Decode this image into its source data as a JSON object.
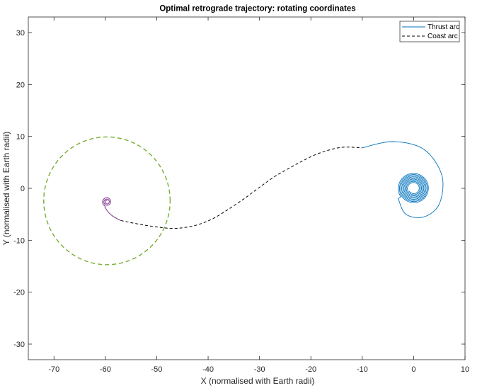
{
  "chart_data": {
    "type": "line",
    "title": "Optimal retrograde trajectory: rotating coordinates",
    "xlabel": "X (normalised with Earth radii)",
    "ylabel": "Y (normalised with Earth radii)",
    "xlim": [
      -75,
      10
    ],
    "ylim": [
      -33,
      33
    ],
    "xticks": [
      -70,
      -60,
      -50,
      -40,
      -30,
      -20,
      -10,
      0,
      10
    ],
    "yticks": [
      -30,
      -20,
      -10,
      0,
      10,
      20,
      30
    ],
    "grid": false,
    "legend_position": "top-right",
    "series": [
      {
        "name": "Thrust arc",
        "style": "solid",
        "color": "#0072BD",
        "description_points": [
          [
            -10,
            7.8
          ],
          [
            -4,
            9.0
          ],
          [
            2,
            7.5
          ],
          [
            5.5,
            2.5
          ],
          [
            5,
            -3
          ],
          [
            2,
            -5.5
          ],
          [
            -1.5,
            -5
          ],
          [
            -3,
            -2
          ]
        ],
        "spiral_center": [
          0,
          0
        ],
        "spiral_outer_radius": 3.0,
        "spiral_inner_radius": 1.0
      },
      {
        "name": "Coast arc",
        "style": "dashed",
        "color": "#000000",
        "points": [
          [
            -57,
            -6.2
          ],
          [
            -54,
            -6.8
          ],
          [
            -51,
            -7.3
          ],
          [
            -47.5,
            -7.7
          ],
          [
            -45,
            -7.6
          ],
          [
            -42,
            -7.0
          ],
          [
            -39,
            -5.8
          ],
          [
            -36,
            -4.0
          ],
          [
            -33,
            -2.0
          ],
          [
            -30,
            0.2
          ],
          [
            -27,
            2.3
          ],
          [
            -24,
            4.0
          ],
          [
            -21,
            5.6
          ],
          [
            -18,
            6.9
          ],
          [
            -14,
            7.9
          ],
          [
            -10,
            7.8
          ]
        ]
      },
      {
        "name": "",
        "style": "solid",
        "color": "#7E2F8E",
        "points": [
          [
            -57,
            -6.2
          ],
          [
            -58.5,
            -5.4
          ],
          [
            -59.5,
            -4.5
          ],
          [
            -60.1,
            -3.6
          ]
        ],
        "spiral_center": [
          -59.7,
          -2.6
        ],
        "spiral_outer_radius": 0.9,
        "spiral_inner_radius": 0.25
      },
      {
        "name": "",
        "style": "dashed",
        "color": "#77AC30",
        "circle_center": [
          -59.7,
          -2.4
        ],
        "circle_radius": 12.3
      }
    ],
    "legend": [
      {
        "label": "Thrust arc",
        "style": "solid",
        "color": "#0072BD"
      },
      {
        "label": "Coast arc",
        "style": "dashed",
        "color": "#000000"
      }
    ]
  }
}
